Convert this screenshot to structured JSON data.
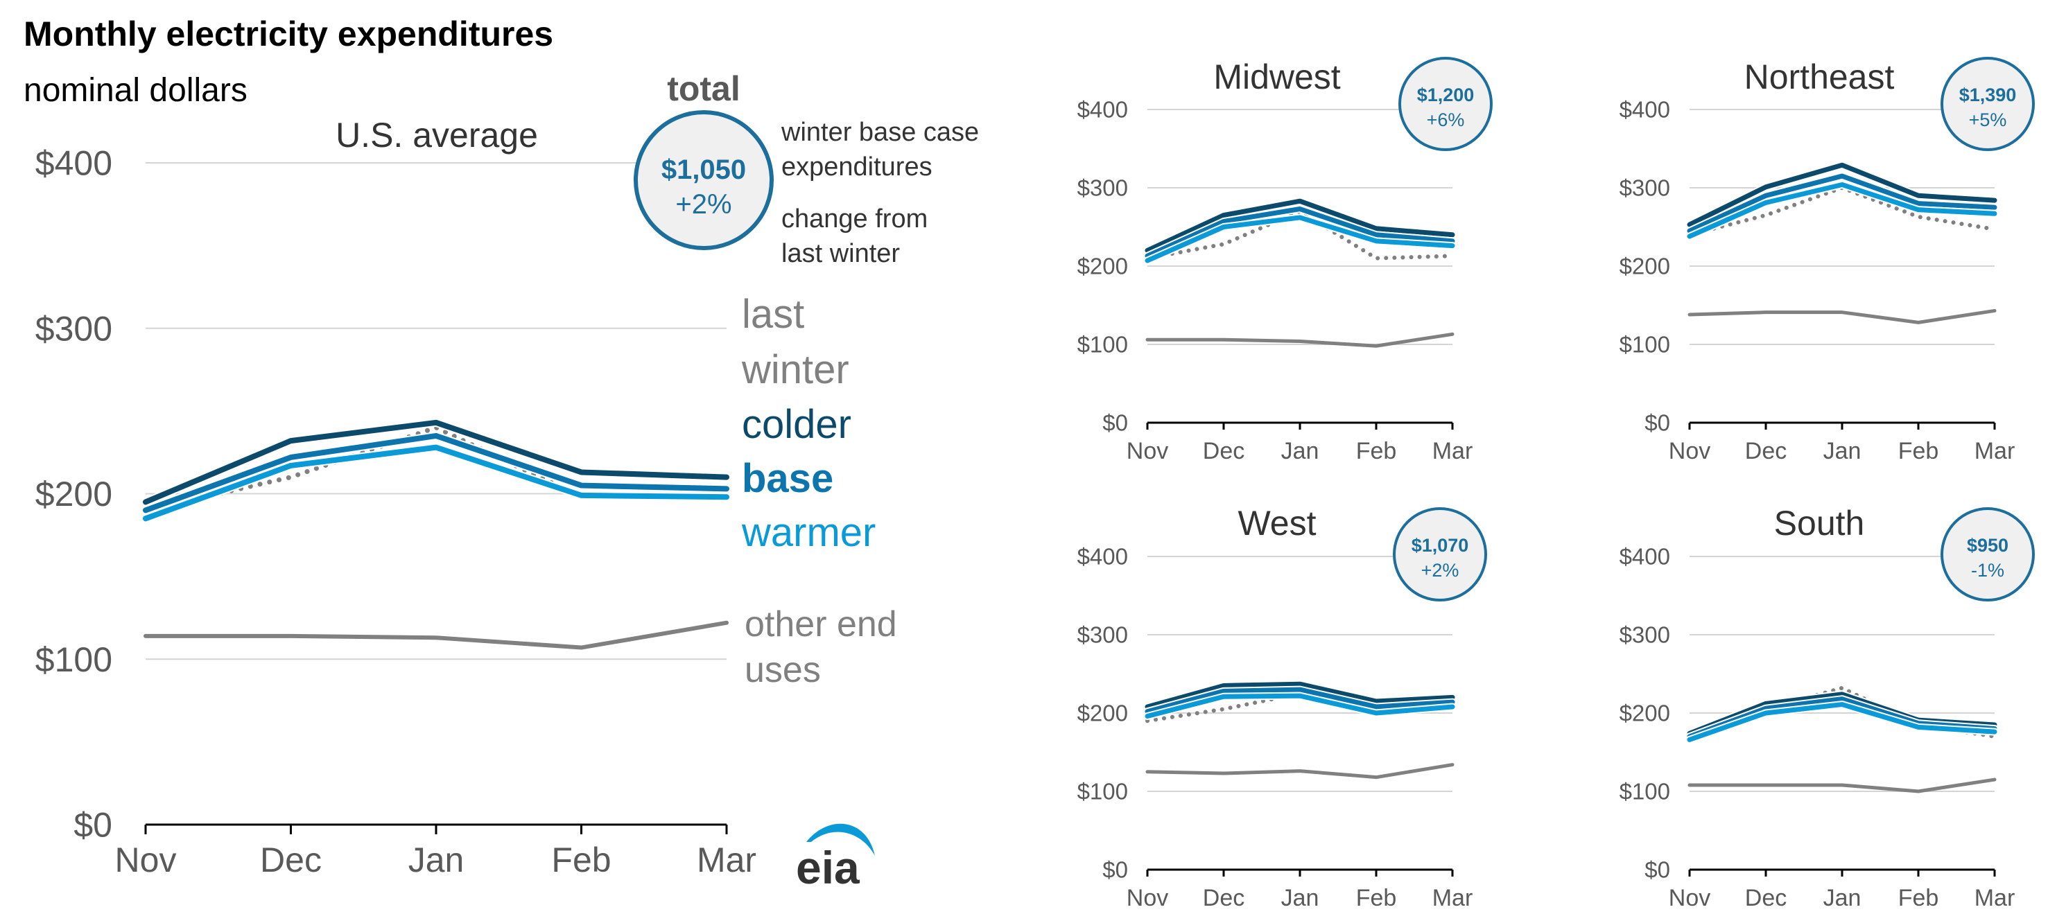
{
  "header": {
    "title": "Monthly electricity expenditures",
    "subtitle": "nominal dollars"
  },
  "colors": {
    "last_winter": "#808080",
    "colder": "#0b4a6b",
    "base": "#0c75ad",
    "warmer": "#0a9ad8",
    "other": "#808080",
    "axis": "#000000",
    "grid": "#d4d4d4",
    "tick_text": "#595959",
    "badge_fill": "#f0f0f0",
    "badge_stroke": "#1c6e9c"
  },
  "legend": {
    "total_label": "total",
    "total_desc": "winter base case expenditures",
    "change_desc": "change from last winter",
    "last_winter": "last winter",
    "colder": "colder",
    "base": "base",
    "warmer": "warmer",
    "other": "other end uses"
  },
  "logo": {
    "text": "eia"
  },
  "chart_data": [
    {
      "id": "us",
      "type": "line",
      "title": "U.S. average",
      "badge": {
        "amount": "$1,050",
        "change": "+2%"
      },
      "categories": [
        "Nov",
        "Dec",
        "Jan",
        "Feb",
        "Mar"
      ],
      "y_ticks": [
        "$0",
        "$100",
        "$200",
        "$300",
        "$400"
      ],
      "ylim": [
        0,
        400
      ],
      "grid": true,
      "series": [
        {
          "name": "last winter",
          "key": "last_winter",
          "values": [
            190,
            210,
            240,
            198,
            197
          ]
        },
        {
          "name": "colder",
          "key": "colder",
          "values": [
            195,
            232,
            243,
            213,
            210
          ]
        },
        {
          "name": "base",
          "key": "base",
          "values": [
            190,
            222,
            235,
            205,
            203
          ]
        },
        {
          "name": "warmer",
          "key": "warmer",
          "values": [
            185,
            217,
            228,
            199,
            198
          ]
        },
        {
          "name": "other end uses",
          "key": "other",
          "values": [
            114,
            114,
            113,
            107,
            122
          ]
        }
      ]
    },
    {
      "id": "midwest",
      "type": "line",
      "title": "Midwest",
      "badge": {
        "amount": "$1,200",
        "change": "+6%"
      },
      "categories": [
        "Nov",
        "Dec",
        "Jan",
        "Feb",
        "Mar"
      ],
      "y_ticks": [
        "$0",
        "$100",
        "$200",
        "$300",
        "$400"
      ],
      "ylim": [
        0,
        400
      ],
      "grid": true,
      "series": [
        {
          "name": "last winter",
          "key": "last_winter",
          "values": [
            210,
            228,
            270,
            210,
            213
          ]
        },
        {
          "name": "colder",
          "key": "colder",
          "values": [
            220,
            265,
            283,
            248,
            240
          ]
        },
        {
          "name": "base",
          "key": "base",
          "values": [
            213,
            257,
            273,
            240,
            232
          ]
        },
        {
          "name": "warmer",
          "key": "warmer",
          "values": [
            207,
            250,
            262,
            232,
            226
          ]
        },
        {
          "name": "other end uses",
          "key": "other",
          "values": [
            106,
            106,
            104,
            98,
            113
          ]
        }
      ]
    },
    {
      "id": "northeast",
      "type": "line",
      "title": "Northeast",
      "badge": {
        "amount": "$1,390",
        "change": "+5%"
      },
      "categories": [
        "Nov",
        "Dec",
        "Jan",
        "Feb",
        "Mar"
      ],
      "y_ticks": [
        "$0",
        "$100",
        "$200",
        "$300",
        "$400"
      ],
      "ylim": [
        0,
        400
      ],
      "grid": true,
      "series": [
        {
          "name": "last winter",
          "key": "last_winter",
          "values": [
            240,
            265,
            300,
            263,
            247
          ]
        },
        {
          "name": "colder",
          "key": "colder",
          "values": [
            253,
            301,
            329,
            290,
            284
          ]
        },
        {
          "name": "base",
          "key": "base",
          "values": [
            245,
            290,
            315,
            280,
            275
          ]
        },
        {
          "name": "warmer",
          "key": "warmer",
          "values": [
            238,
            281,
            304,
            272,
            267
          ]
        },
        {
          "name": "other end uses",
          "key": "other",
          "values": [
            138,
            141,
            141,
            128,
            143
          ]
        }
      ]
    },
    {
      "id": "west",
      "type": "line",
      "title": "West",
      "badge": {
        "amount": "$1,070",
        "change": "+2%"
      },
      "categories": [
        "Nov",
        "Dec",
        "Jan",
        "Feb",
        "Mar"
      ],
      "y_ticks": [
        "$0",
        "$100",
        "$200",
        "$300",
        "$400"
      ],
      "ylim": [
        0,
        400
      ],
      "grid": true,
      "series": [
        {
          "name": "last winter",
          "key": "last_winter",
          "values": [
            190,
            205,
            225,
            200,
            210
          ]
        },
        {
          "name": "colder",
          "key": "colder",
          "values": [
            208,
            235,
            237,
            215,
            220
          ]
        },
        {
          "name": "base",
          "key": "base",
          "values": [
            202,
            228,
            230,
            208,
            214
          ]
        },
        {
          "name": "warmer",
          "key": "warmer",
          "values": [
            196,
            221,
            222,
            200,
            208
          ]
        },
        {
          "name": "other end uses",
          "key": "other",
          "values": [
            125,
            123,
            126,
            118,
            134
          ]
        }
      ]
    },
    {
      "id": "south",
      "type": "line",
      "title": "South",
      "badge": {
        "amount": "$950",
        "change": "-1%"
      },
      "categories": [
        "Nov",
        "Dec",
        "Jan",
        "Feb",
        "Mar"
      ],
      "y_ticks": [
        "$0",
        "$100",
        "$200",
        "$300",
        "$400"
      ],
      "ylim": [
        0,
        400
      ],
      "grid": true,
      "series": [
        {
          "name": "last winter",
          "key": "last_winter",
          "values": [
            170,
            205,
            232,
            185,
            170
          ]
        },
        {
          "name": "colder",
          "key": "colder",
          "values": [
            174,
            212,
            224,
            191,
            185
          ]
        },
        {
          "name": "base",
          "key": "base",
          "values": [
            170,
            206,
            218,
            187,
            180
          ]
        },
        {
          "name": "warmer",
          "key": "warmer",
          "values": [
            166,
            200,
            211,
            182,
            176
          ]
        },
        {
          "name": "other end uses",
          "key": "other",
          "values": [
            108,
            108,
            108,
            100,
            115
          ]
        }
      ]
    }
  ]
}
